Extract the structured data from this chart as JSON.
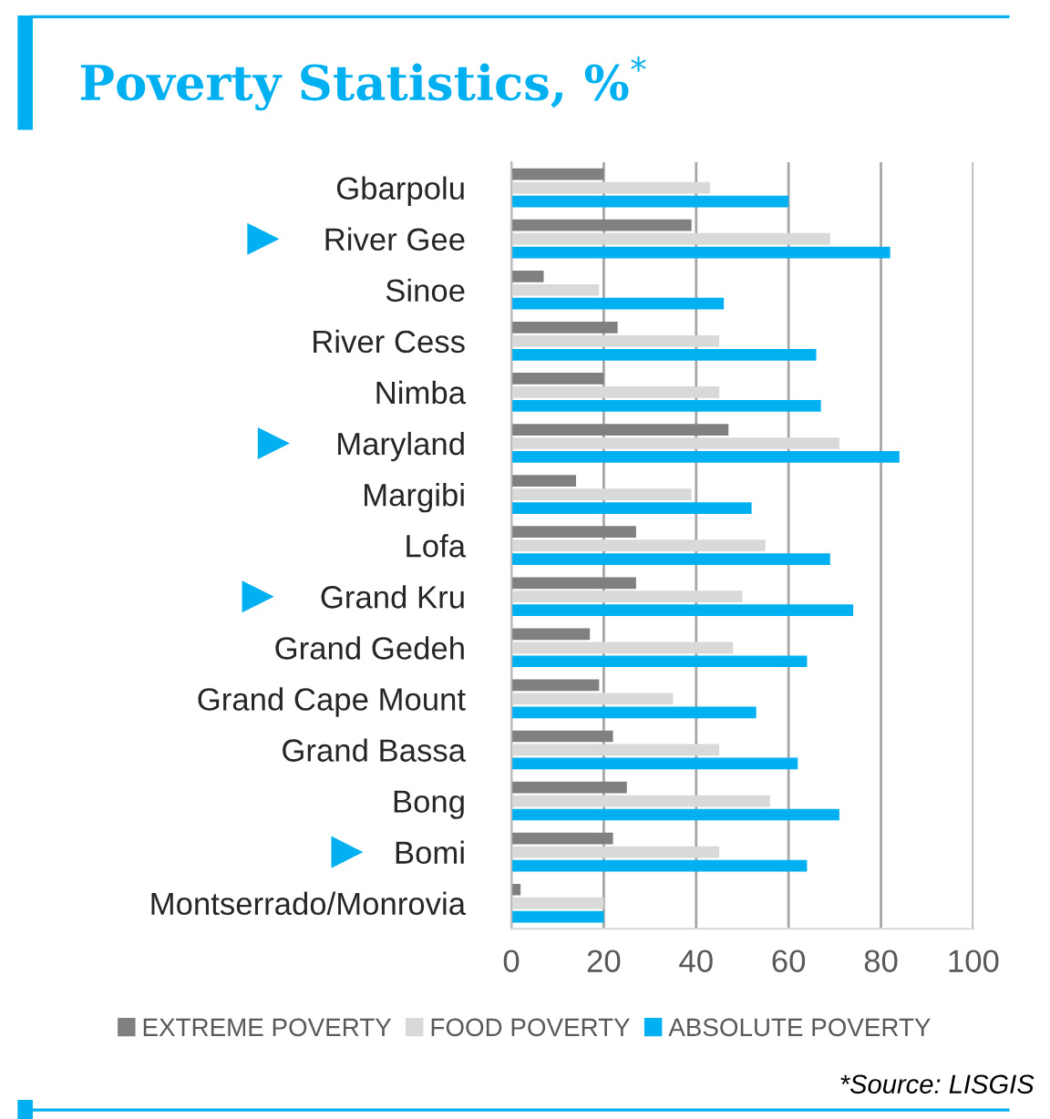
{
  "chart_data": {
    "type": "bar",
    "orientation": "horizontal",
    "title": "Poverty Statistics, %$^{*}$",
    "categories": [
      "Gbarpolu",
      "River Gee",
      "Sinoe",
      "River Cess",
      "Nimba",
      "Maryland",
      "Margibi",
      "Lofa",
      "Grand Kru",
      "Grand Gedeh",
      "Grand Cape Mount",
      "Grand Bassa",
      "Bong",
      "Bomi",
      "Montserrado/Monrovia"
    ],
    "series": [
      {
        "name": "EXTREME POVERTY",
        "color": "#808080",
        "values": [
          20,
          39,
          7,
          23,
          20,
          47,
          14,
          27,
          27,
          17,
          19,
          22,
          25,
          22,
          2
        ]
      },
      {
        "name": "FOOD POVERTY",
        "color": "#d9d9d9",
        "values": [
          43,
          69,
          19,
          45,
          45,
          71,
          39,
          55,
          50,
          48,
          35,
          45,
          56,
          45,
          20
        ]
      },
      {
        "name": "ABSOLUTE POVERTY",
        "color": "#00b0f0",
        "values": [
          60,
          82,
          46,
          66,
          67,
          84,
          52,
          69,
          74,
          64,
          53,
          62,
          71,
          64,
          20
        ]
      }
    ],
    "xlim": [
      0,
      100
    ],
    "xticks": [
      0,
      20,
      40,
      60,
      80,
      100
    ],
    "grid": "x",
    "legend": "bottom",
    "annotations": [
      "*Source: LISGIS"
    ]
  }
}
